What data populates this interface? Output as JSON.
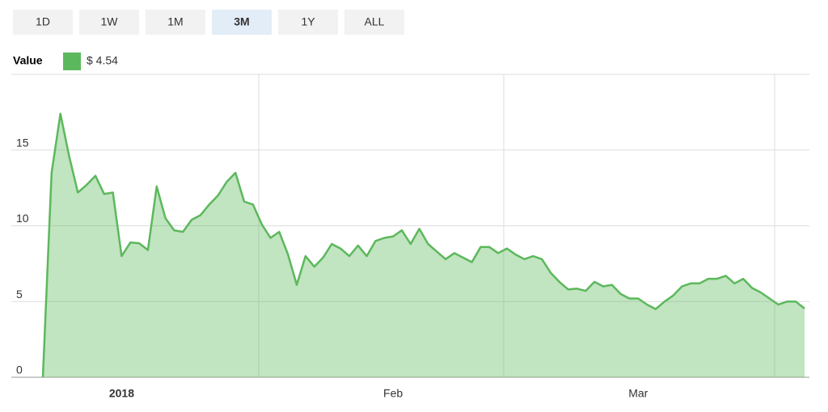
{
  "buttons": [
    "1D",
    "1W",
    "1M",
    "3M",
    "1Y",
    "ALL"
  ],
  "selected": 3,
  "chart_data": {
    "type": "area",
    "legend_label": "$ 4.54",
    "categories": [
      null,
      null,
      null,
      null,
      null,
      null,
      null,
      null,
      null,
      "2018",
      null,
      null,
      null,
      null,
      null,
      null,
      null,
      null,
      null,
      null,
      null,
      null,
      null,
      null,
      null,
      null,
      null,
      null,
      null,
      null,
      null,
      null,
      null,
      null,
      null,
      null,
      null,
      null,
      null,
      null,
      "Feb",
      null,
      null,
      null,
      null,
      null,
      null,
      null,
      null,
      null,
      null,
      null,
      null,
      null,
      null,
      null,
      null,
      null,
      null,
      null,
      null,
      null,
      null,
      null,
      null,
      null,
      null,
      null,
      "Mar",
      null,
      null,
      null,
      null,
      null,
      null,
      null,
      null,
      null,
      null,
      null,
      null,
      null,
      null,
      null,
      null,
      null,
      null,
      null
    ],
    "series": [
      {
        "name": "Value",
        "color": "#5cb85c",
        "values": [
          0,
          13.5,
          17.4,
          14.6,
          12.2,
          12.7,
          13.3,
          12.1,
          12.2,
          8.0,
          8.9,
          8.85,
          8.4,
          12.6,
          10.5,
          9.7,
          9.6,
          10.4,
          10.7,
          11.4,
          12.0,
          12.9,
          13.5,
          11.6,
          11.4,
          10.1,
          9.2,
          9.6,
          8.1,
          6.1,
          8.0,
          7.3,
          7.9,
          8.8,
          8.5,
          8.0,
          8.7,
          8.0,
          9.0,
          9.2,
          9.3,
          9.7,
          8.8,
          9.8,
          8.8,
          8.3,
          7.8,
          8.2,
          7.9,
          7.6,
          8.6,
          8.6,
          8.2,
          8.5,
          8.1,
          7.8,
          8.0,
          7.8,
          6.9,
          6.3,
          5.8,
          5.85,
          5.7,
          6.3,
          6.0,
          6.1,
          5.5,
          5.2,
          5.2,
          4.8,
          4.5,
          5.0,
          5.4,
          6.0,
          6.2,
          6.2,
          6.5,
          6.5,
          6.7,
          6.2,
          6.5,
          5.9,
          5.6,
          5.2,
          4.8,
          5.0,
          5.0,
          4.54
        ]
      }
    ],
    "ylim": [
      0,
      20
    ],
    "yticks": [
      0,
      5,
      10,
      15
    ],
    "grid": true
  }
}
